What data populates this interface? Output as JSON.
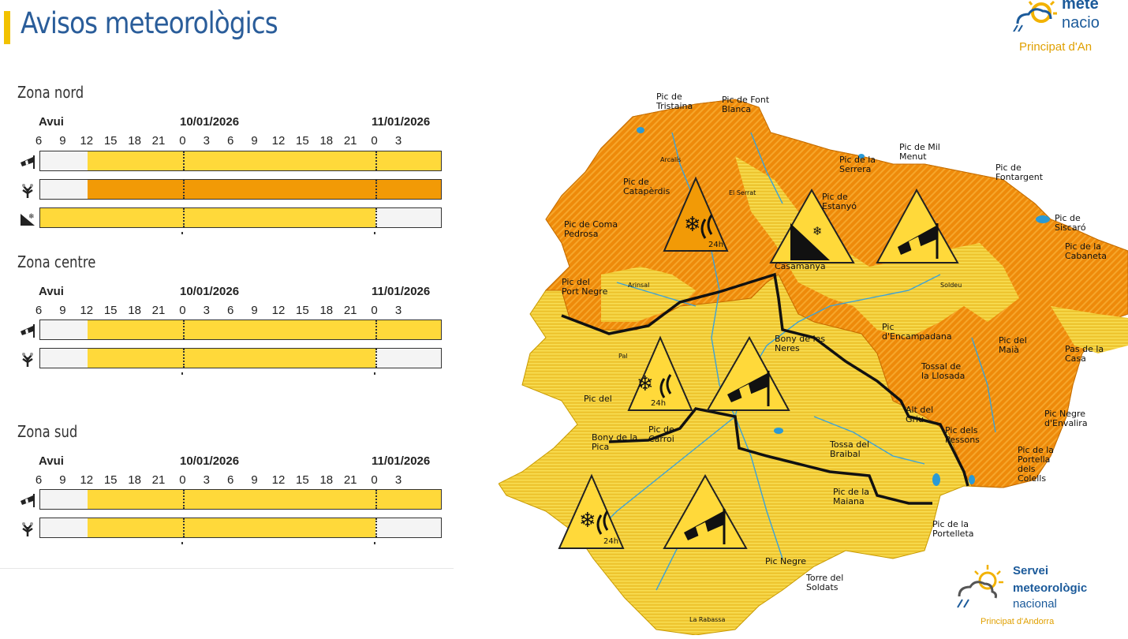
{
  "page": {
    "title": "Avisos meteorològics"
  },
  "logo": {
    "line1": "mete",
    "line2": "nacio",
    "line3": "Principat d'An"
  },
  "colors": {
    "yellow": "#ffd93a",
    "orange": "#f29a06",
    "none": "#f4f4f4",
    "title": "#2a5d9a"
  },
  "timeline": {
    "today_label": "Avui",
    "date1": "10/01/2026",
    "date2": "11/01/2026",
    "hours": [
      "6",
      "9",
      "12",
      "15",
      "18",
      "21",
      "0",
      "3",
      "6",
      "9",
      "12",
      "15",
      "18",
      "21",
      "0",
      "3"
    ]
  },
  "zones": [
    {
      "name": "Zona nord",
      "rows": [
        {
          "icon": "wind-icon",
          "level": "yellow",
          "from_index": 2,
          "to_index": 17
        },
        {
          "icon": "snow-tree-icon",
          "level": "orange",
          "from_index": 2,
          "to_index": 17
        },
        {
          "icon": "avalanche-icon",
          "level": "yellow",
          "from_index": 0,
          "to_index": 14
        }
      ]
    },
    {
      "name": "Zona centre",
      "rows": [
        {
          "icon": "wind-icon",
          "level": "yellow",
          "from_index": 2,
          "to_index": 17
        },
        {
          "icon": "snow-tree-icon",
          "level": "yellow",
          "from_index": 2,
          "to_index": 14
        }
      ]
    },
    {
      "name": "Zona sud",
      "rows": [
        {
          "icon": "wind-icon",
          "level": "yellow",
          "from_index": 2,
          "to_index": 17
        },
        {
          "icon": "snow-tree-icon",
          "level": "yellow",
          "from_index": 2,
          "to_index": 14
        }
      ]
    }
  ],
  "map": {
    "warning_24h": "24h",
    "peaks": [
      "Pic de Tristaina",
      "Pic de Font Blanca",
      "Pic de la Serrera",
      "Pic de Mil Menut",
      "Pic de Fontargent",
      "Pic de Siscaró",
      "Pic de la Cabaneta",
      "Pic de Catapèrdis",
      "Pic de Estanyó",
      "Pic de Coma Pedrosa",
      "Pic del Port Negre",
      "Casamanya",
      "Bony de les Neres",
      "Pic d'Encampadana",
      "Pic del Maià",
      "Pas de la Casa",
      "Tossal de la Llosada",
      "Alt del Griu",
      "Pic Negre d'Envalira",
      "Pic dels Pessons",
      "Pic de la Portella dels Colells",
      "Pic de Carroi",
      "Bony de la Pica",
      "Tossa del Braibal",
      "Pic de la Maiana",
      "Pic de la Portelleta",
      "Pic Negre",
      "Torre del Soldats",
      "Pic del"
    ],
    "villages": [
      "Arcalís",
      "El Serrat",
      "Arinsal",
      "Soldeu",
      "Pal",
      "La Rabassa"
    ]
  },
  "logo_bottom": {
    "line1": "Servei",
    "line2": "meteorològic",
    "line3": "nacional",
    "line4": "Principat d'Andorra"
  }
}
